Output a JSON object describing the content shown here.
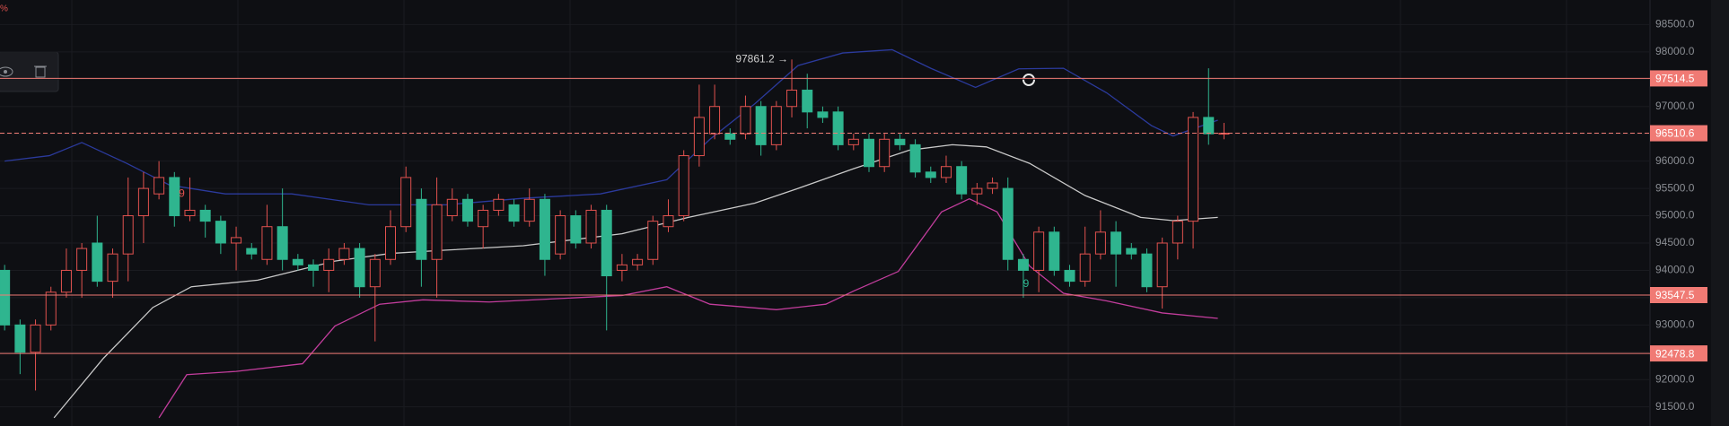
{
  "chart_data": {
    "type": "candlestick",
    "corner_text": "%",
    "xlim": [
      -0.3,
      106.6
    ],
    "ylim": [
      91150,
      98950
    ],
    "yticks": [
      {
        "value": 91500,
        "label": "91500.0"
      },
      {
        "value": 92000,
        "label": "92000.0"
      },
      {
        "value": 92500,
        "label": "92500.0"
      },
      {
        "value": 93000,
        "label": "93000.0"
      },
      {
        "value": 93500,
        "label": "93500.0"
      },
      {
        "value": 94000,
        "label": "94000.0"
      },
      {
        "value": 94500,
        "label": "94500.0"
      },
      {
        "value": 95000,
        "label": "95000.0"
      },
      {
        "value": 95500,
        "label": "95500.0"
      },
      {
        "value": 96000,
        "label": "96000.0"
      },
      {
        "value": 96500,
        "label": "96500.0"
      },
      {
        "value": 97000,
        "label": "97000.0"
      },
      {
        "value": 97500,
        "label": "97500.0"
      },
      {
        "value": 98000,
        "label": "98000.0"
      },
      {
        "value": 98500,
        "label": "98500.0"
      }
    ],
    "grid": true,
    "up_color": "#e2524f",
    "down_color": "#2fb58f",
    "open": [
      94000,
      93000,
      92500,
      93000,
      93600,
      94000,
      94500,
      93800,
      94300,
      95000,
      95400,
      95700,
      95000,
      95100,
      94900,
      94500,
      94400,
      94200,
      94800,
      94200,
      94100,
      94000,
      94200,
      94400,
      93700,
      94200,
      94800,
      95300,
      94200,
      95000,
      95300,
      94800,
      95100,
      95200,
      94900,
      95300,
      94300,
      95000,
      94500,
      95100,
      94000,
      94100,
      94200,
      94800,
      95000,
      96100,
      96500,
      96500,
      96500,
      97000,
      96300,
      97000,
      97300,
      96900,
      96900,
      96300,
      96400,
      95900,
      96400,
      96300,
      95800,
      95700,
      95900,
      95400,
      95500,
      95500,
      94200,
      94000,
      94700,
      94000,
      93800,
      94300,
      94700,
      94400,
      94300,
      93700,
      94500,
      94900,
      96800,
      96500
    ],
    "high": [
      94100,
      93100,
      93100,
      93700,
      94400,
      94500,
      95000,
      94400,
      95700,
      95800,
      96000,
      95800,
      95700,
      95200,
      95000,
      94800,
      94500,
      95200,
      95500,
      94300,
      94200,
      94400,
      94500,
      94500,
      94300,
      95100,
      95900,
      95500,
      95700,
      95500,
      95400,
      95200,
      95400,
      95300,
      95500,
      95400,
      95100,
      95100,
      95200,
      95200,
      94300,
      94300,
      95000,
      95300,
      96200,
      97400,
      97400,
      96600,
      97200,
      97100,
      97100,
      97861.2,
      97600,
      97000,
      97000,
      96500,
      96500,
      96500,
      96500,
      96400,
      95900,
      96100,
      96000,
      95600,
      95700,
      95700,
      94300,
      94800,
      94800,
      94100,
      94800,
      95100,
      94900,
      94500,
      94400,
      94600,
      95000,
      96900,
      97700,
      96700
    ],
    "low": [
      92900,
      92100,
      91800,
      92900,
      93500,
      93500,
      93700,
      93500,
      93800,
      94500,
      95300,
      94800,
      94900,
      94600,
      94300,
      94000,
      94200,
      94100,
      94000,
      94000,
      93700,
      93600,
      94100,
      93500,
      92700,
      94100,
      94700,
      93700,
      93500,
      94900,
      94800,
      94400,
      95000,
      94800,
      94800,
      93900,
      94200,
      94400,
      94400,
      92900,
      93800,
      94000,
      94100,
      94700,
      94900,
      95900,
      96400,
      96300,
      96400,
      96100,
      96200,
      96800,
      96600,
      96700,
      96200,
      96200,
      95800,
      95800,
      96200,
      95700,
      95600,
      95600,
      95300,
      95200,
      95400,
      94000,
      93500,
      93600,
      93900,
      93700,
      93700,
      94200,
      93700,
      94200,
      93600,
      93300,
      94200,
      94400,
      96300,
      96400
    ],
    "close": [
      93000,
      92500,
      93000,
      93600,
      94000,
      94400,
      93800,
      94300,
      95000,
      95500,
      95700,
      95000,
      95100,
      94900,
      94500,
      94600,
      94300,
      94800,
      94200,
      94100,
      94000,
      94200,
      94400,
      93700,
      94200,
      94800,
      95700,
      94200,
      95200,
      95300,
      94900,
      95100,
      95300,
      94900,
      95300,
      94200,
      95000,
      94500,
      95100,
      93900,
      94100,
      94200,
      94900,
      95000,
      96100,
      96800,
      97000,
      96400,
      97000,
      96300,
      97000,
      97300,
      96900,
      96800,
      96300,
      96400,
      95900,
      96400,
      96300,
      95800,
      95700,
      95900,
      95400,
      95500,
      95600,
      94200,
      94000,
      94700,
      94000,
      93800,
      94300,
      94700,
      94300,
      94300,
      93700,
      94500,
      94900,
      96800,
      96500,
      96510.6
    ],
    "series": [
      {
        "color": "#2b3a9c",
        "x": [
          0,
          2.9,
          5,
          7.9,
          10.7,
          14.3,
          18.6,
          23.6,
          28.6,
          33.6,
          38.6,
          42.9,
          45.7,
          48.6,
          51.4,
          54.3,
          57.5,
          60,
          62.9,
          65.7,
          68.6,
          71.4,
          74.3,
          75.7,
          78.6
        ],
        "values": [
          96000,
          96100,
          96340,
          95960,
          95560,
          95400,
          95400,
          95200,
          95200,
          95320,
          95400,
          95660,
          96400,
          97050,
          97750,
          97980,
          98040,
          97700,
          97350,
          97690,
          97700,
          97250,
          96650,
          96460,
          96750
        ]
      },
      {
        "color": "#c9c9c9",
        "x": [
          3.2,
          6.4,
          9.6,
          12.1,
          16.4,
          21.4,
          25,
          28.6,
          33.6,
          40,
          44.3,
          48.6,
          51.4,
          55,
          58.6,
          61.4,
          63.6,
          66.4,
          70,
          73.6,
          75.7,
          78.6
        ],
        "values": [
          91300,
          92390,
          93320,
          93700,
          93820,
          94170,
          94310,
          94370,
          94450,
          94670,
          94970,
          95230,
          95500,
          95860,
          96200,
          96300,
          96260,
          95960,
          95370,
          94970,
          94910,
          94970
        ]
      },
      {
        "color": "#c23d9c",
        "x": [
          10,
          11.8,
          15,
          19.3,
          21.4,
          24.3,
          27.1,
          31.4,
          40,
          42.9,
          45.7,
          50,
          53.2,
          55,
          57.9,
          60.7,
          62.5,
          64.3,
          66.4,
          68.6,
          71.4,
          75,
          78.6
        ],
        "values": [
          91300,
          92090,
          92150,
          92290,
          92980,
          93380,
          93460,
          93420,
          93540,
          93700,
          93380,
          93280,
          93380,
          93620,
          93980,
          95070,
          95310,
          95070,
          94080,
          93580,
          93440,
          93220,
          93120
        ]
      }
    ],
    "levels": [
      {
        "value": 97514.5,
        "dashed": false
      },
      {
        "value": 96510.6,
        "dashed": true
      },
      {
        "value": 93547.5,
        "dashed": false
      },
      {
        "value": 92478.8,
        "dashed": false
      }
    ],
    "level_color": "#f07a74",
    "annotations": [
      {
        "text": "97861.2 →",
        "x": 51,
        "y": 97861.2,
        "color": "#d0d0d0"
      },
      {
        "text": "9",
        "x": 11.9,
        "y": 95400,
        "color": "#e2524f"
      },
      {
        "text": "9",
        "x": 66.6,
        "y": 93750,
        "color": "#2fb58f"
      }
    ]
  }
}
